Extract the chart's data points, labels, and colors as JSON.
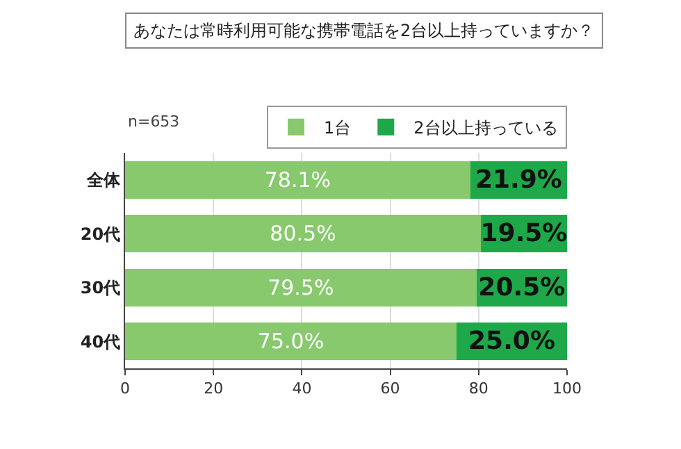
{
  "chart_data": {
    "type": "bar",
    "orientation": "horizontal",
    "stacked": true,
    "title": "あなたは常時利用可能な携帯電話を2台以上持っていますか？",
    "annotations": [
      "n=653"
    ],
    "categories": [
      "全体",
      "20代",
      "30代",
      "40代"
    ],
    "series": [
      {
        "name": "1台",
        "color": "#88c96e",
        "values": [
          78.1,
          80.5,
          79.5,
          75.0
        ],
        "value_labels": [
          "78.1%",
          "80.5%",
          "79.5%",
          "75.0%"
        ]
      },
      {
        "name": "2台以上持っている",
        "color": "#1ea84a",
        "values": [
          21.9,
          19.5,
          20.5,
          25.0
        ],
        "value_labels": [
          "21.9%",
          "19.5%",
          "20.5%",
          "25.0%"
        ]
      }
    ],
    "xlim": [
      0,
      100
    ],
    "xticks": [
      0,
      20,
      40,
      60,
      80,
      100
    ],
    "grid": "x",
    "legend": "top right"
  }
}
